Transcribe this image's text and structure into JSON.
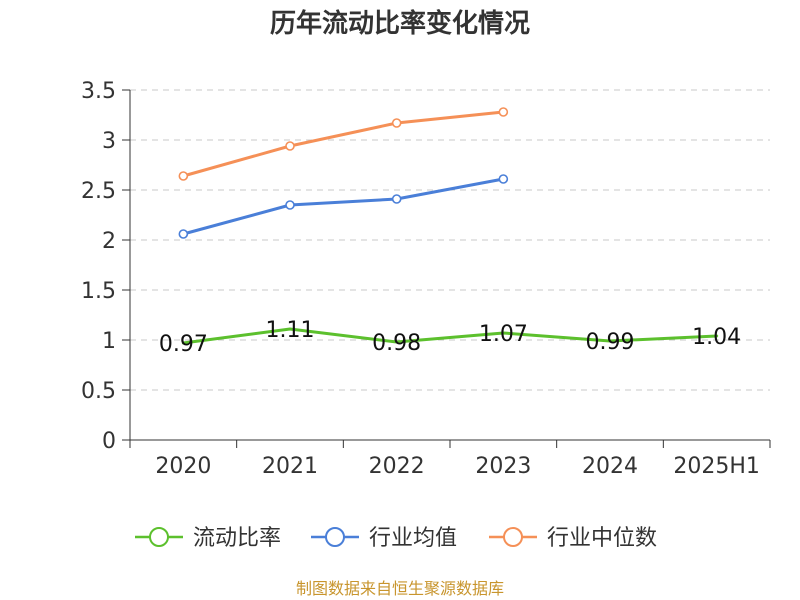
{
  "chart_data": {
    "type": "line",
    "title": "历年流动比率变化情况",
    "categories": [
      "2020",
      "2021",
      "2022",
      "2023",
      "2024",
      "2025H1"
    ],
    "series": [
      {
        "name": "流动比率",
        "color": "#5cc02d",
        "values": [
          0.97,
          1.11,
          0.98,
          1.07,
          0.99,
          1.04
        ],
        "value_labels": [
          "0.97",
          "1.11",
          "0.98",
          "1.07",
          "0.99",
          "1.04"
        ],
        "show_markers": false
      },
      {
        "name": "行业均值",
        "color": "#4a7fd8",
        "values": [
          2.06,
          2.35,
          2.41,
          2.61,
          null,
          null
        ],
        "show_markers": true
      },
      {
        "name": "行业中位数",
        "color": "#f59057",
        "values": [
          2.64,
          2.94,
          3.17,
          3.28,
          null,
          null
        ],
        "show_markers": true
      }
    ],
    "yticks": [
      "0",
      "0.5",
      "1",
      "1.5",
      "2",
      "2.5",
      "3",
      "3.5"
    ],
    "ylim": [
      0,
      3.5
    ],
    "grid": true,
    "legend_position": "bottom"
  },
  "source": {
    "text": "制图数据来自恒生聚源数据库",
    "color": "#c8952d"
  }
}
